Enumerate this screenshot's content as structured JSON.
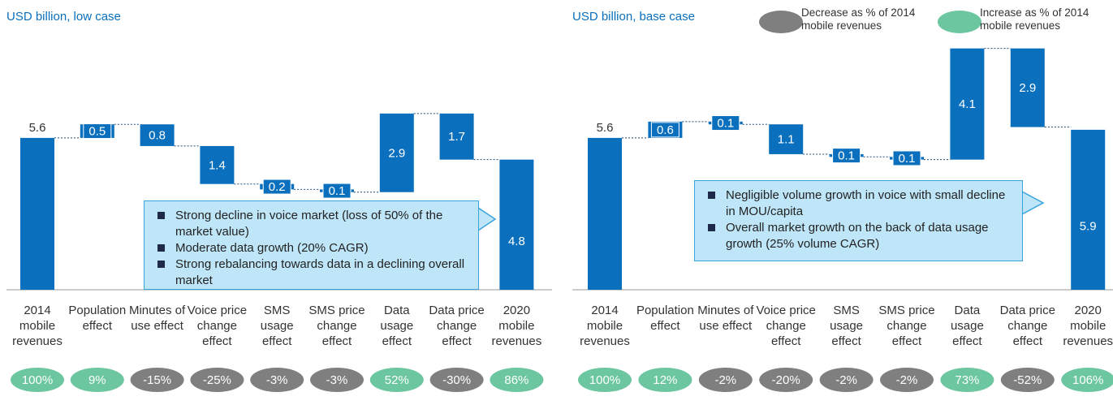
{
  "legend": [
    {
      "label": "Decrease as % of 2014 mobile revenues",
      "color": "#7f7f7f"
    },
    {
      "label": "Increase as % of 2014 mobile revenues",
      "color": "#6cc6a0"
    }
  ],
  "chart_data": [
    {
      "type": "waterfall",
      "subtitle": "USD billion, low case",
      "color": "#0a6fbd",
      "categories": [
        "2014 mobile revenues",
        "Population effect",
        "Minutes of use effect",
        "Voice price change effect",
        "SMS usage effect",
        "SMS price change effect",
        "Data usage effect",
        "Data price change effect",
        "2020 mobile revenues"
      ],
      "measure": [
        "total",
        "relative",
        "relative",
        "relative",
        "relative",
        "relative",
        "relative",
        "relative",
        "total"
      ],
      "values": [
        5.6,
        0.5,
        -0.8,
        -1.4,
        -0.2,
        -0.1,
        2.9,
        -1.7,
        4.8
      ],
      "value_labels": [
        "5.6",
        "0.5",
        "0.8",
        "1.4",
        "0.2",
        "0.1",
        "2.9",
        "1.7",
        "4.8"
      ],
      "shares": {
        "values": [
          100,
          9,
          -15,
          -25,
          -3,
          -3,
          52,
          -30,
          86
        ],
        "value_labels": [
          "100%",
          "9%",
          "-15%",
          "-25%",
          "-3%",
          "-3%",
          "52%",
          "-30%",
          "86%"
        ]
      },
      "notes": [
        "Strong decline in voice market (loss of 50% of the market value)",
        "Moderate data growth (20% CAGR)",
        "Strong rebalancing towards data in a declining overall market"
      ],
      "ylim": [
        0,
        8.8
      ]
    },
    {
      "type": "waterfall",
      "subtitle": "USD billion, base case",
      "color": "#0a6fbd",
      "categories": [
        "2014 mobile revenues",
        "Population effect",
        "Minutes of use effect",
        "Voice price change effect",
        "SMS usage effect",
        "SMS price change effect",
        "Data usage effect",
        "Data price change effect",
        "2020 mobile revenues"
      ],
      "measure": [
        "total",
        "relative",
        "relative",
        "relative",
        "relative",
        "relative",
        "relative",
        "relative",
        "total"
      ],
      "values": [
        5.6,
        0.6,
        -0.1,
        -1.1,
        -0.1,
        -0.1,
        4.1,
        -2.9,
        5.9
      ],
      "value_labels": [
        "5.6",
        "0.6",
        "0.1",
        "1.1",
        "0.1",
        "0.1",
        "4.1",
        "2.9",
        "5.9"
      ],
      "shares": {
        "values": [
          100,
          12,
          -2,
          -20,
          -2,
          -2,
          73,
          -52,
          106
        ],
        "value_labels": [
          "100%",
          "12%",
          "-2%",
          "-20%",
          "-2%",
          "-2%",
          "73%",
          "-52%",
          "106%"
        ]
      },
      "notes": [
        "Negligible volume growth in voice with small decline in MOU/capita",
        "Overall market growth on the back of data usage  growth (25% volume CAGR)"
      ],
      "ylim": [
        0,
        8.8
      ]
    }
  ]
}
